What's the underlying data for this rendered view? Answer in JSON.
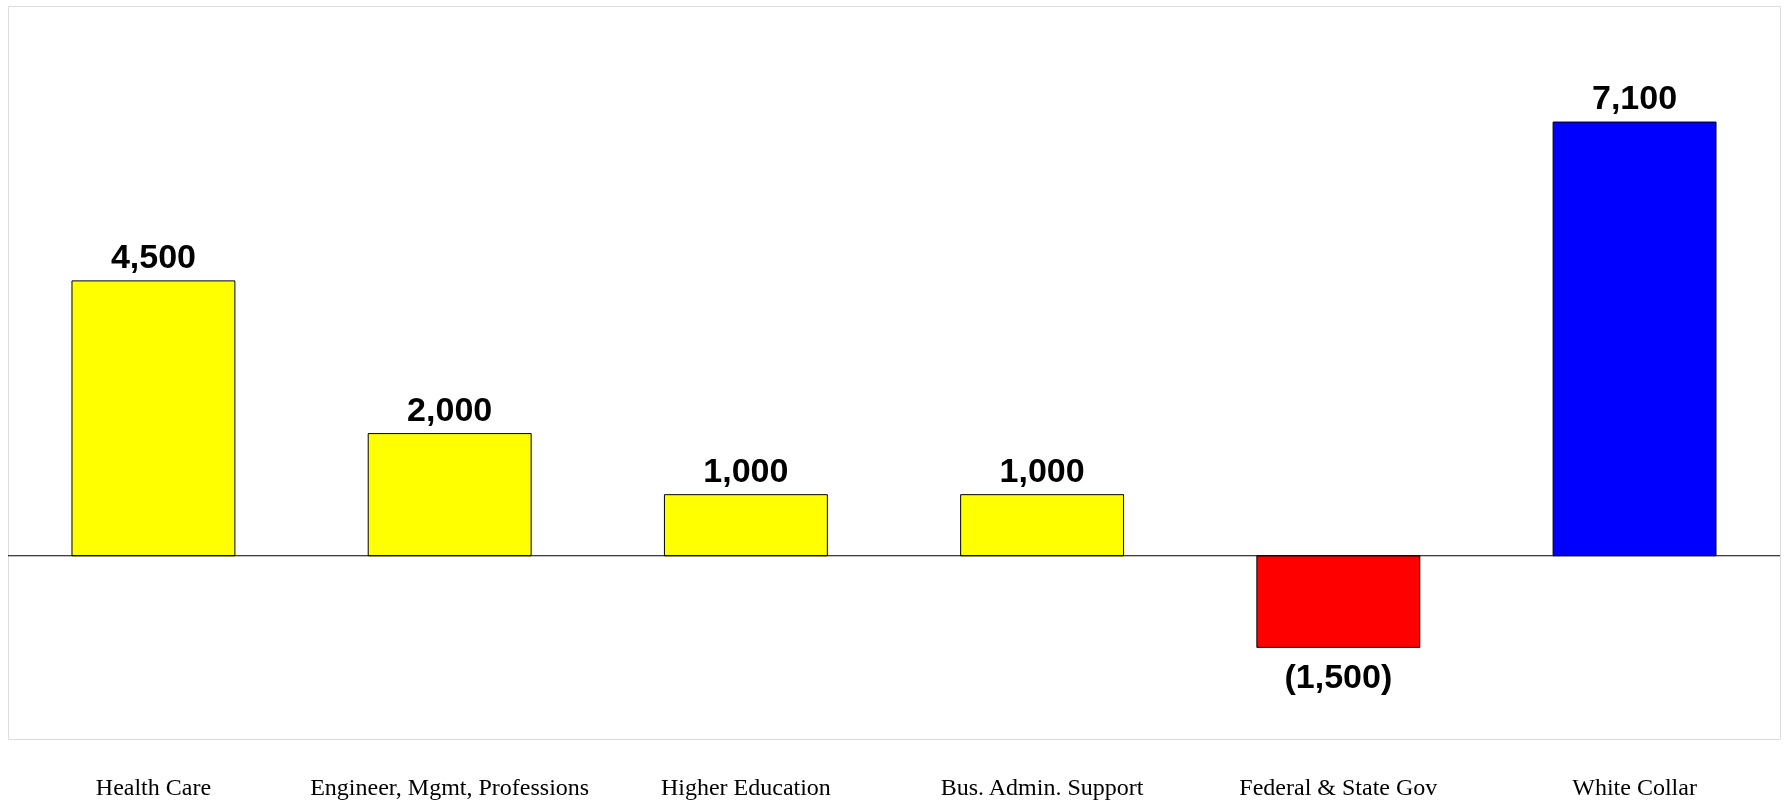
{
  "chart_data": {
    "type": "bar",
    "categories": [
      "Health Care",
      "Engineer, Mgmt, Professions",
      "Higher Education",
      "Bus. Admin. Support",
      "Federal & State Gov",
      "White Collar"
    ],
    "values": [
      4500,
      2000,
      1000,
      1000,
      -1500,
      7100
    ],
    "colors": [
      "#ffff00",
      "#ffff00",
      "#ffff00",
      "#ffff00",
      "#ff0000",
      "#0000ff"
    ],
    "value_labels": [
      "4,500",
      "2,000",
      "1,000",
      "1,000",
      "(1,500)",
      "7,100"
    ],
    "ylim": [
      -3000,
      9000
    ],
    "tick_labels": "x"
  }
}
